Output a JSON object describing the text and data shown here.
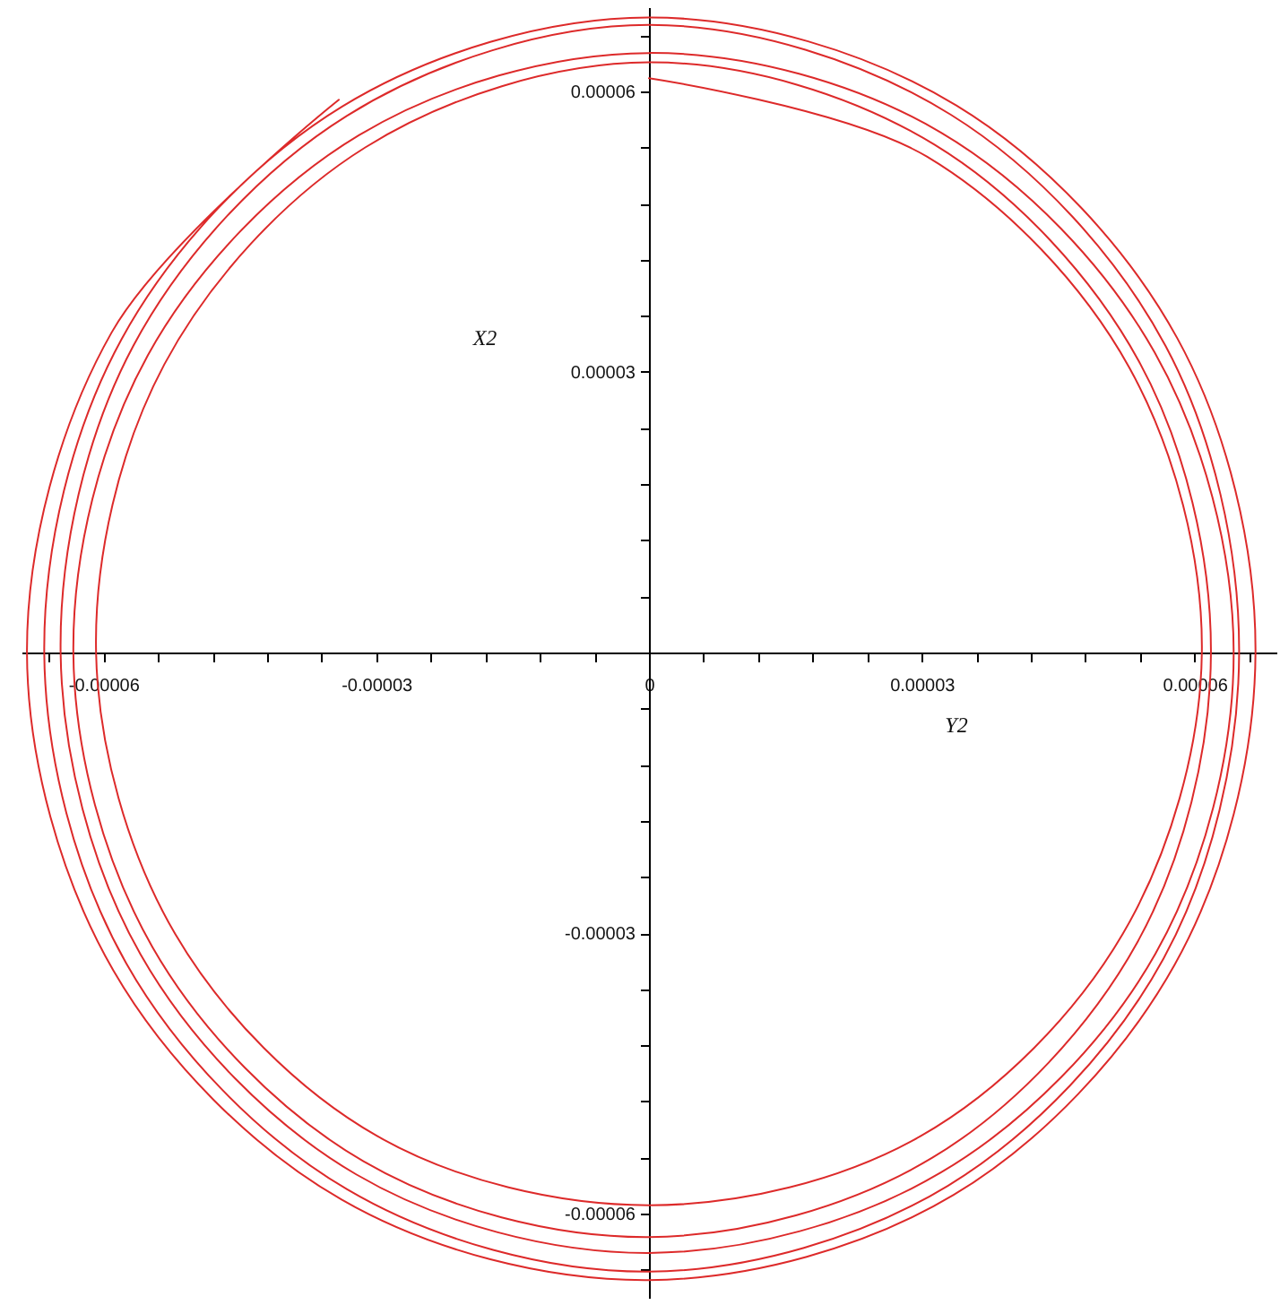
{
  "chart_data": {
    "type": "line",
    "xlabel": "Y2",
    "ylabel": "X2",
    "xlim": [
      -6.9e-05,
      6.9e-05
    ],
    "ylim": [
      -6.9e-05,
      6.9e-05
    ],
    "xticks": [
      {
        "value": -6.6e-05,
        "label": null
      },
      {
        "value": -6e-05,
        "label": "-0.00006"
      },
      {
        "value": -5.4e-05,
        "label": null
      },
      {
        "value": -4.8e-05,
        "label": null
      },
      {
        "value": -4.2e-05,
        "label": null
      },
      {
        "value": -3.6e-05,
        "label": null
      },
      {
        "value": -3e-05,
        "label": "-0.00003"
      },
      {
        "value": -2.4e-05,
        "label": null
      },
      {
        "value": -1.8e-05,
        "label": null
      },
      {
        "value": -1.2e-05,
        "label": null
      },
      {
        "value": -6e-06,
        "label": null
      },
      0,
      {
        "value": 6e-06,
        "label": null
      },
      {
        "value": 1.2e-05,
        "label": null
      },
      {
        "value": 1.8e-05,
        "label": null
      },
      {
        "value": 2.4e-05,
        "label": null
      },
      {
        "value": 3e-05,
        "label": "0.00003"
      },
      {
        "value": 3.6e-05,
        "label": null
      },
      {
        "value": 4.2e-05,
        "label": null
      },
      {
        "value": 4.8e-05,
        "label": null
      },
      {
        "value": 5.4e-05,
        "label": null
      },
      {
        "value": 6e-05,
        "label": "0.00006"
      },
      {
        "value": 6.6e-05,
        "label": null
      }
    ],
    "yticks": [
      {
        "value": -6.6e-05,
        "label": null
      },
      {
        "value": -6e-05,
        "label": "-0.00006"
      },
      {
        "value": -5.4e-05,
        "label": null
      },
      {
        "value": -4.8e-05,
        "label": null
      },
      {
        "value": -4.2e-05,
        "label": null
      },
      {
        "value": -3.6e-05,
        "label": null
      },
      {
        "value": -3e-05,
        "label": "-0.00003"
      },
      {
        "value": -2.4e-05,
        "label": null
      },
      {
        "value": -1.8e-05,
        "label": null
      },
      {
        "value": -1.2e-05,
        "label": null
      },
      {
        "value": -6e-06,
        "label": null
      },
      {
        "value": 6e-06,
        "label": null
      },
      {
        "value": 1.2e-05,
        "label": null
      },
      {
        "value": 1.8e-05,
        "label": null
      },
      {
        "value": 2.4e-05,
        "label": null
      },
      {
        "value": 3e-05,
        "label": "0.00003"
      },
      {
        "value": 3.6e-05,
        "label": null
      },
      {
        "value": 4.2e-05,
        "label": null
      },
      {
        "value": 4.8e-05,
        "label": null
      },
      {
        "value": 5.4e-05,
        "label": null
      },
      {
        "value": 6e-05,
        "label": "0.00006"
      },
      {
        "value": 6.6e-05,
        "label": null
      }
    ],
    "series": [
      {
        "color": "#dd2a2a",
        "x": [
          0,
          3.06e-05,
          5.28e-05,
          6.08e-05,
          5.21e-05,
          2.99e-05,
          0,
          -2.99e-05,
          -5.21e-05,
          -6.08e-05,
          -5.33e-05,
          -3.12e-05,
          0,
          3.14e-05,
          5.39e-05,
          6.18e-05,
          5.37e-05,
          3.12e-05,
          0,
          -3.14e-05,
          -5.46e-05,
          -6.33e-05,
          -5.51e-05,
          -3.19e-05,
          0,
          3.21e-05,
          5.56e-05,
          6.43e-05,
          5.57e-05,
          3.21e-05,
          0,
          -3.22e-05,
          -5.59e-05,
          -6.47e-05,
          -5.67e-05,
          -3.32e-05,
          0,
          3.32e-05,
          5.68e-05,
          6.49e-05,
          5.66e-05,
          3.29e-05,
          0,
          -3.32e-05,
          -5.75e-05,
          -6.65e-05,
          -5.8e-05,
          -3.37e-05,
          0,
          3.38e-05,
          5.81e-05,
          6.67e-05,
          5.78e-05,
          3.35e-05,
          0,
          -3.38e-05,
          -5.89e-05,
          -6.84e-05,
          -5.91e-05,
          -3.41e-05
        ],
        "values": [
          6.14e-05,
          5.3e-05,
          3.05e-05,
          0,
          -3.01e-05,
          -5.17e-05,
          -5.91e-05,
          -5.17e-05,
          -3.01e-05,
          0,
          3.08e-05,
          5.4e-05,
          6.31e-05,
          5.43e-05,
          3.11e-05,
          0,
          -3.1e-05,
          -5.4e-05,
          -6.25e-05,
          -5.44e-05,
          -3.15e-05,
          0,
          3.18e-05,
          5.53e-05,
          6.41e-05,
          5.56e-05,
          3.21e-05,
          0,
          -3.22e-05,
          -5.56e-05,
          -6.42e-05,
          -5.58e-05,
          -3.23e-05,
          0,
          3.28e-05,
          5.74e-05,
          6.71e-05,
          5.75e-05,
          3.28e-05,
          0,
          -3.27e-05,
          -5.7e-05,
          -6.62e-05,
          -5.74e-05,
          -3.32e-05,
          0,
          3.35e-05,
          5.84e-05,
          6.79e-05,
          5.85e-05,
          3.36e-05,
          0,
          -3.34e-05,
          -5.8e-05,
          -6.71e-05,
          -5.85e-05,
          -3.4e-05,
          0,
          3.42e-05,
          5.91e-05
        ]
      }
    ]
  }
}
